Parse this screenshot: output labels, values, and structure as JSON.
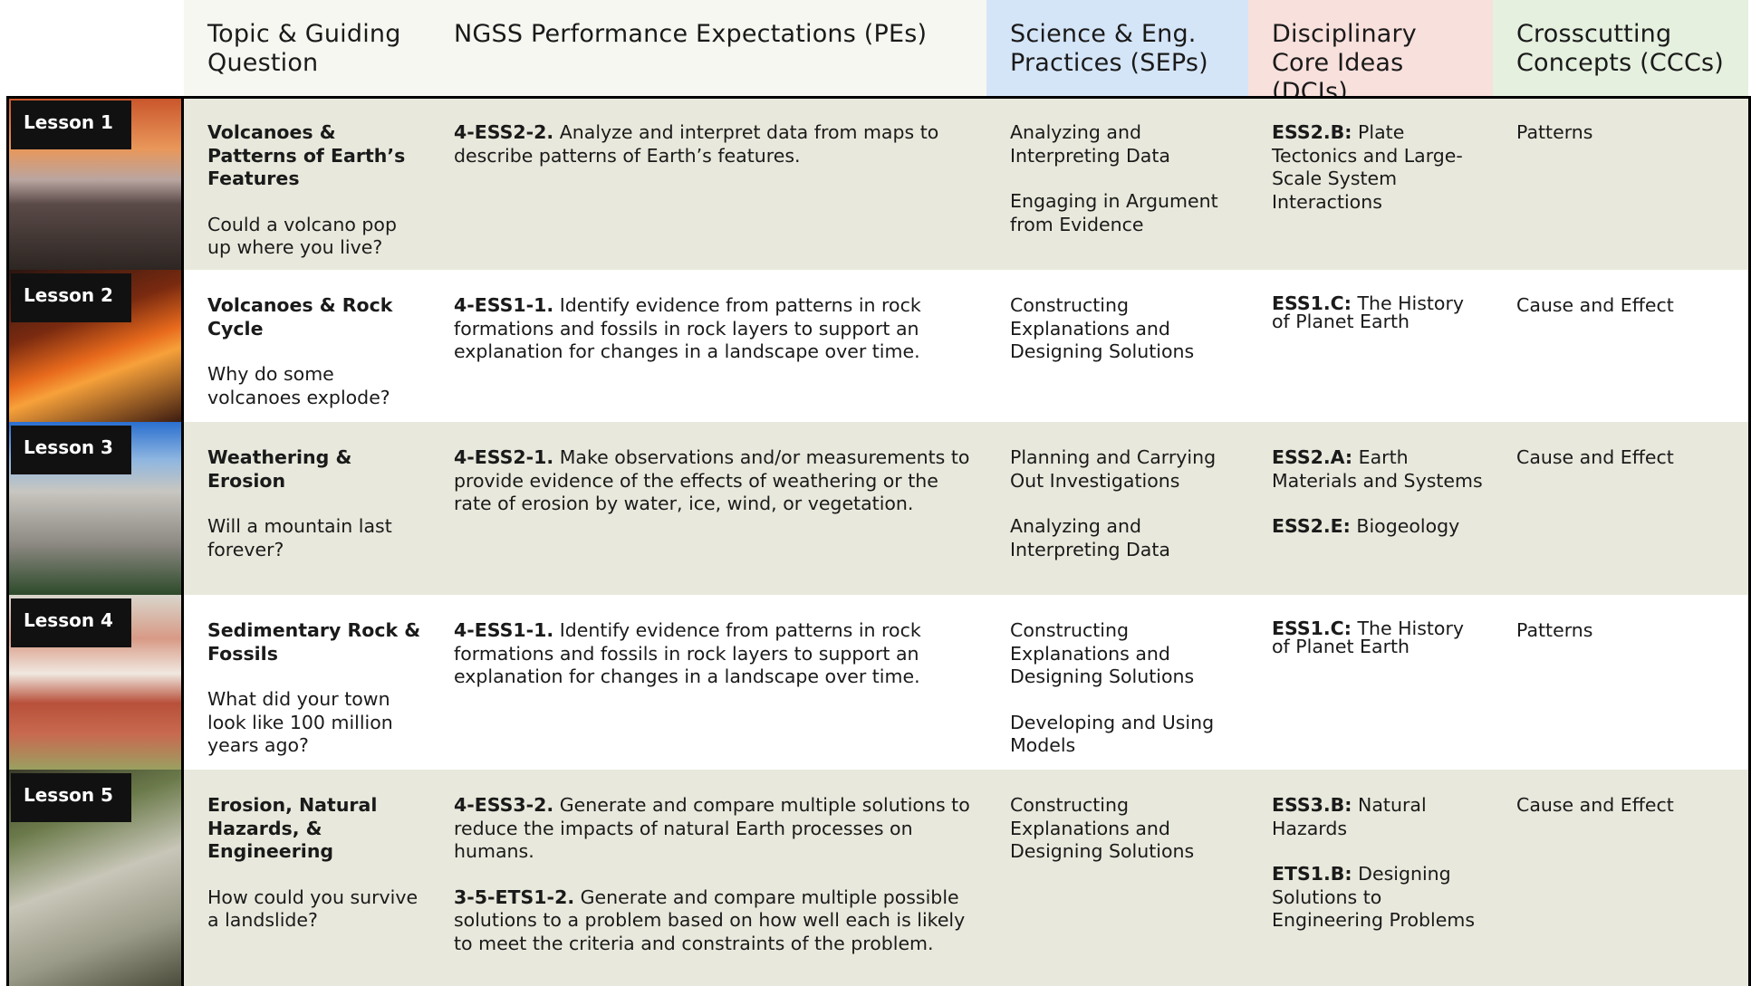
{
  "header": {
    "columns": [
      "Topic & Guiding Question",
      "NGSS Performance Expectations (PEs)",
      "Science & Eng. Practices (SEPs)",
      "Disciplinary Core Ideas (DCIs)",
      "Crosscutting Concepts (CCCs)"
    ]
  },
  "rows": [
    {
      "lesson": "Lesson 1",
      "topic": "Volcanoes & Patterns of Earth’s Features",
      "question": "Could a volcano pop up where you live?",
      "pes": [
        {
          "code": "4-ESS2-2.",
          "text": "Analyze and interpret data from maps to describe patterns of Earth’s features."
        }
      ],
      "seps": [
        "Analyzing and Interpreting Data",
        "Engaging in Argument from Evidence"
      ],
      "dcis": [
        {
          "code": "ESS2.B:",
          "text": "Plate Tectonics and Large-Scale System Interactions"
        }
      ],
      "ccc": "Patterns"
    },
    {
      "lesson": "Lesson 2",
      "topic": "Volcanoes & Rock Cycle",
      "question": "Why do some volcanoes explode?",
      "pes": [
        {
          "code": "4-ESS1-1.",
          "text": "Identify evidence from patterns in rock formations and fossils in rock layers to support an explanation for changes in a landscape over time."
        }
      ],
      "seps": [
        "Constructing Explanations and Designing Solutions"
      ],
      "dcis": [
        {
          "code": "ESS1.C:",
          "text": "The History of Planet Earth"
        }
      ],
      "ccc": "Cause and Effect"
    },
    {
      "lesson": "Lesson 3",
      "topic": "Weathering & Erosion",
      "question": "Will a mountain last forever?",
      "pes": [
        {
          "code": "4-ESS2-1.",
          "text": "Make observations and/or measurements to provide evidence of the effects of weathering or the rate of erosion by water, ice, wind, or vegetation."
        }
      ],
      "seps": [
        "Planning and Carrying Out Investigations",
        "Analyzing and Interpreting Data"
      ],
      "dcis": [
        {
          "code": "ESS2.A:",
          "text": "Earth Materials and Systems"
        },
        {
          "code": "ESS2.E:",
          "text": "Biogeology"
        }
      ],
      "ccc": "Cause and Effect"
    },
    {
      "lesson": "Lesson 4",
      "topic": "Sedimentary Rock & Fossils",
      "question": "What did your town look like 100 million years ago?",
      "pes": [
        {
          "code": "4-ESS1-1.",
          "text": "Identify evidence from patterns in rock formations and fossils in rock layers to support an explanation for changes in a landscape over time."
        }
      ],
      "seps": [
        "Constructing Explanations and Designing Solutions",
        "Developing and Using Models"
      ],
      "dcis": [
        {
          "code": "ESS1.C:",
          "text": "The History of Planet Earth"
        }
      ],
      "ccc": "Patterns"
    },
    {
      "lesson": "Lesson 5",
      "topic": "Erosion, Natural Hazards, & Engineering",
      "question": "How could you survive a landslide?",
      "pes": [
        {
          "code": "4-ESS3-2.",
          "text": "Generate and compare multiple solutions to reduce the impacts of natural Earth processes on humans."
        },
        {
          "code": "3-5-ETS1-2.",
          "text": "Generate and compare multiple possible solutions to a problem based on how well each is likely to meet the criteria and constraints of the problem."
        }
      ],
      "seps": [
        "Constructing Explanations and Designing Solutions"
      ],
      "dcis": [
        {
          "code": "ESS3.B:",
          "text": "Natural Hazards"
        },
        {
          "code": "ETS1.B:",
          "text": "Designing Solutions to Engineering Problems"
        }
      ],
      "ccc": "Cause and Effect"
    }
  ]
}
